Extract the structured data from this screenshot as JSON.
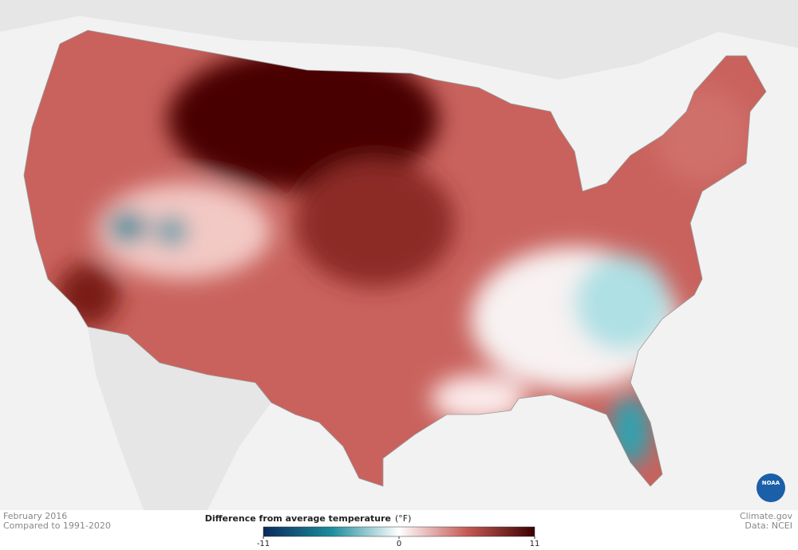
{
  "map": {
    "date": "February 2016",
    "baseline": "Compared to 1991-2020"
  },
  "legend": {
    "title": "Difference from average temperature",
    "unit": "(°F)",
    "range": [
      -11,
      11
    ],
    "ticks": [
      -11,
      0,
      11
    ],
    "colors": [
      "#0b2a5a",
      "#1c8c9c",
      "#ffffff",
      "#c65a55",
      "#3d0000"
    ]
  },
  "credits": {
    "source": "Climate.gov",
    "data": "Data: NCEI",
    "logo": "NOAA"
  }
}
